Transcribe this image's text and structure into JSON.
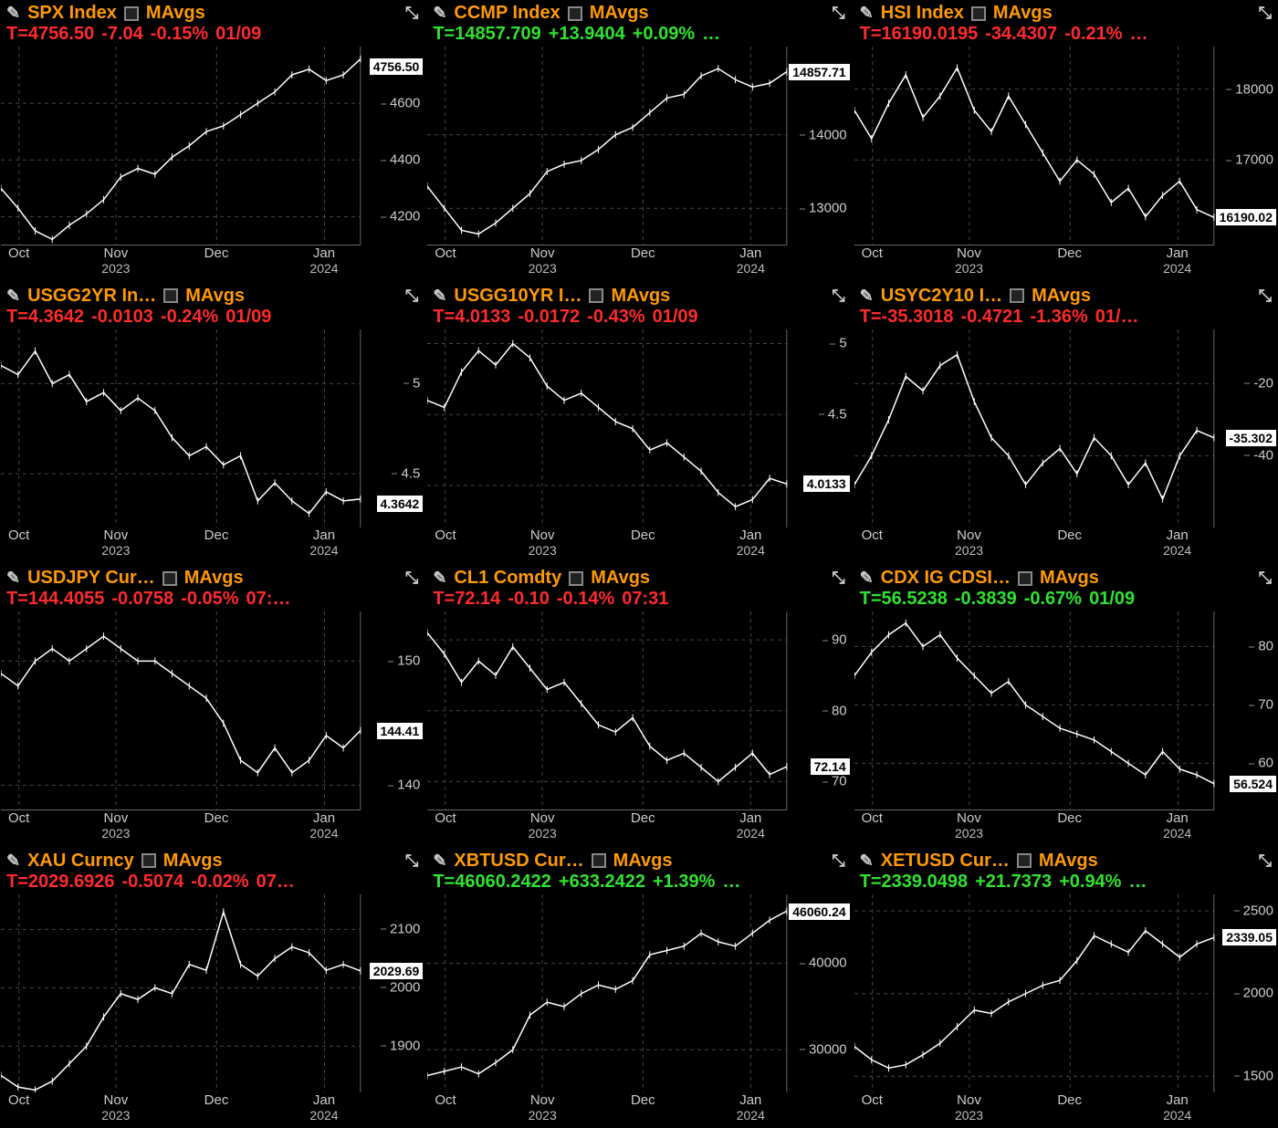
{
  "colors": {
    "bg": "#000000",
    "fg": "#ffffff",
    "title": "#ff9900",
    "up": "#2ee22e",
    "down": "#ff2a2a",
    "grid": "#444444",
    "axis": "#666666",
    "flag_bg": "#ffffff",
    "flag_fg": "#000000"
  },
  "layout": {
    "cols": 3,
    "rows": 4,
    "yaxis_width": 70,
    "font_family": "Arial"
  },
  "xaxis": {
    "ticks": [
      {
        "label": "Oct",
        "year": "",
        "pos": 0.05
      },
      {
        "label": "Nov",
        "year": "2023",
        "pos": 0.32
      },
      {
        "label": "Dec",
        "year": "",
        "pos": 0.6
      },
      {
        "label": "Jan",
        "year": "2024",
        "pos": 0.9
      }
    ]
  },
  "panels": [
    {
      "name": "spx",
      "symbol": "SPX Index",
      "mavgs": "MAvgs",
      "t": "T=4756.50",
      "chg": "-7.04",
      "pct": "-0.15%",
      "date": "01/09",
      "dir": "down",
      "ylim": [
        4100,
        4800
      ],
      "yticks": [
        4200,
        4400,
        4600
      ],
      "flag": "4756.50",
      "flag_pos": 0.1,
      "series": [
        4300,
        4230,
        4150,
        4120,
        4170,
        4210,
        4260,
        4340,
        4370,
        4350,
        4410,
        4450,
        4500,
        4520,
        4560,
        4600,
        4640,
        4700,
        4720,
        4680,
        4700,
        4756
      ]
    },
    {
      "name": "ccmp",
      "symbol": "CCMP Index",
      "mavgs": "MAvgs",
      "t": "T=14857.709",
      "chg": "+13.9404",
      "pct": "+0.09%",
      "date": "…",
      "dir": "up",
      "ylim": [
        12500,
        15200
      ],
      "yticks": [
        13000,
        14000
      ],
      "flag": "14857.71",
      "flag_pos": 0.13,
      "series": [
        13300,
        13000,
        12700,
        12650,
        12800,
        13000,
        13200,
        13500,
        13600,
        13650,
        13800,
        14000,
        14100,
        14300,
        14500,
        14550,
        14800,
        14900,
        14750,
        14650,
        14700,
        14857
      ]
    },
    {
      "name": "hsi",
      "symbol": "HSI Index",
      "mavgs": "MAvgs",
      "t": "T=16190.0195",
      "chg": "-34.4307",
      "pct": "-0.21%",
      "date": "…",
      "dir": "down",
      "ylim": [
        15800,
        18600
      ],
      "yticks": [
        17000,
        18000
      ],
      "flag": "16190.02",
      "flag_pos": 0.86,
      "series": [
        17700,
        17300,
        17800,
        18200,
        17600,
        17900,
        18300,
        17700,
        17400,
        17900,
        17500,
        17100,
        16700,
        17000,
        16800,
        16400,
        16600,
        16200,
        16500,
        16700,
        16300,
        16190
      ]
    },
    {
      "name": "usgg2yr",
      "symbol": "USGG2YR In…",
      "mavgs": "MAvgs",
      "t": "T=4.3642",
      "chg": "-0.0103",
      "pct": "-0.24%",
      "date": "01/09",
      "dir": "down",
      "ylim": [
        4.2,
        5.3
      ],
      "yticks": [
        4.5,
        5.0
      ],
      "flag": "4.3642",
      "flag_pos": 0.88,
      "series": [
        5.1,
        5.05,
        5.18,
        5.0,
        5.05,
        4.9,
        4.95,
        4.85,
        4.92,
        4.85,
        4.7,
        4.6,
        4.65,
        4.55,
        4.6,
        4.35,
        4.45,
        4.35,
        4.28,
        4.4,
        4.35,
        4.36
      ]
    },
    {
      "name": "usgg10yr",
      "symbol": "USGG10YR I…",
      "mavgs": "MAvgs",
      "t": "T=4.0133",
      "chg": "-0.0172",
      "pct": "-0.43%",
      "date": "01/09",
      "dir": "down",
      "ylim": [
        3.7,
        5.1
      ],
      "yticks": [
        4.0,
        4.5,
        5.0
      ],
      "flag": "4.0133",
      "flag_pos": 0.78,
      "series": [
        4.6,
        4.55,
        4.8,
        4.95,
        4.85,
        5.0,
        4.9,
        4.7,
        4.6,
        4.65,
        4.55,
        4.45,
        4.4,
        4.25,
        4.3,
        4.2,
        4.1,
        3.95,
        3.85,
        3.9,
        4.05,
        4.01
      ]
    },
    {
      "name": "usyc2y10",
      "symbol": "USYC2Y10 I…",
      "mavgs": "MAvgs",
      "t": "T=-35.3018",
      "chg": "-0.4721",
      "pct": "-1.36%",
      "date": "01/…",
      "dir": "down",
      "ylim": [
        -60,
        -5
      ],
      "yticks": [
        -20,
        -40
      ],
      "flag": "-35.302",
      "flag_pos": 0.55,
      "series": [
        -48,
        -40,
        -30,
        -18,
        -22,
        -15,
        -12,
        -25,
        -35,
        -40,
        -48,
        -42,
        -38,
        -45,
        -35,
        -40,
        -48,
        -42,
        -52,
        -40,
        -33,
        -35
      ]
    },
    {
      "name": "usdjpy",
      "symbol": "USDJPY Cur…",
      "mavgs": "MAvgs",
      "t": "T=144.4055",
      "chg": "-0.0758",
      "pct": "-0.05%",
      "date": "07:…",
      "dir": "down",
      "ylim": [
        138,
        154
      ],
      "yticks": [
        140,
        150
      ],
      "flag": "144.41",
      "flag_pos": 0.6,
      "series": [
        149,
        148,
        150,
        151,
        150,
        151,
        152,
        151,
        150,
        150,
        149,
        148,
        147,
        145,
        142,
        141,
        143,
        141,
        142,
        144,
        143,
        144.4
      ]
    },
    {
      "name": "cl1",
      "symbol": "CL1 Comdty",
      "mavgs": "MAvgs",
      "t": "T=72.14",
      "chg": "-0.10",
      "pct": "-0.14%",
      "date": "07:31",
      "dir": "down",
      "ylim": [
        66,
        94
      ],
      "yticks": [
        70,
        80,
        90
      ],
      "flag": "72.14",
      "flag_pos": 0.78,
      "series": [
        91,
        88,
        84,
        87,
        85,
        89,
        86,
        83,
        84,
        81,
        78,
        77,
        79,
        75,
        73,
        74,
        72,
        70,
        72,
        74,
        71,
        72.1
      ]
    },
    {
      "name": "cdxig",
      "symbol": "CDX IG CDSI…",
      "mavgs": "MAvgs",
      "t": "T=56.5238",
      "chg": "-0.3839",
      "pct": "-0.67%",
      "date": "01/09",
      "dir": "up",
      "ylim": [
        52,
        86
      ],
      "yticks": [
        60,
        70,
        80
      ],
      "flag": "56.524",
      "flag_pos": 0.87,
      "series": [
        75,
        79,
        82,
        84,
        80,
        82,
        78,
        75,
        72,
        74,
        70,
        68,
        66,
        65,
        64,
        62,
        60,
        58,
        62,
        59,
        58,
        56.5
      ]
    },
    {
      "name": "xau",
      "symbol": "XAU Curncy",
      "mavgs": "MAvgs",
      "t": "T=2029.6926",
      "chg": "-0.5074",
      "pct": "-0.02%",
      "date": "07…",
      "dir": "down",
      "ylim": [
        1820,
        2160
      ],
      "yticks": [
        1900,
        2000,
        2100
      ],
      "flag": "2029.69",
      "flag_pos": 0.39,
      "series": [
        1850,
        1830,
        1825,
        1840,
        1870,
        1900,
        1950,
        1990,
        1980,
        2000,
        1990,
        2040,
        2030,
        2130,
        2040,
        2020,
        2050,
        2070,
        2060,
        2030,
        2040,
        2029
      ]
    },
    {
      "name": "xbtusd",
      "symbol": "XBTUSD Cur…",
      "mavgs": "MAvgs",
      "t": "T=46060.2422",
      "chg": "+633.2422",
      "pct": "+1.39%",
      "date": "…",
      "dir": "up",
      "ylim": [
        25000,
        48000
      ],
      "yticks": [
        30000,
        40000
      ],
      "flag": "46060.24",
      "flag_pos": 0.09,
      "series": [
        27000,
        27500,
        28000,
        27200,
        28500,
        30000,
        34000,
        35500,
        35000,
        36500,
        37500,
        37000,
        38000,
        41000,
        41500,
        42000,
        43500,
        42500,
        42000,
        43500,
        45000,
        46060
      ]
    },
    {
      "name": "xetusd",
      "symbol": "XETUSD Cur…",
      "mavgs": "MAvgs",
      "t": "T=2339.0498",
      "chg": "+21.7373",
      "pct": "+0.94%",
      "date": "…",
      "dir": "up",
      "ylim": [
        1400,
        2600
      ],
      "yticks": [
        1500,
        2000,
        2500
      ],
      "flag": "2339.05",
      "flag_pos": 0.22,
      "series": [
        1680,
        1600,
        1550,
        1570,
        1630,
        1700,
        1800,
        1900,
        1880,
        1950,
        2000,
        2050,
        2080,
        2200,
        2350,
        2300,
        2250,
        2380,
        2300,
        2220,
        2300,
        2339
      ]
    }
  ]
}
